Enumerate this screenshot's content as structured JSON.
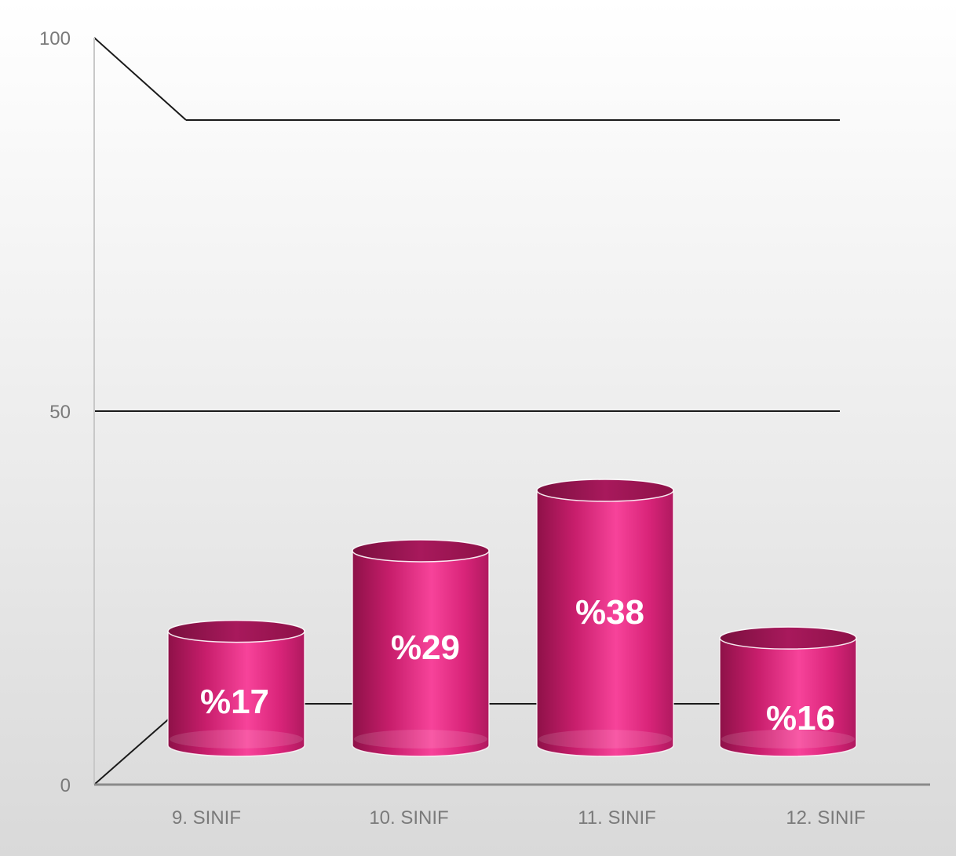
{
  "chart_data": {
    "type": "bar",
    "categories": [
      "9. SINIF",
      "10. SINIF",
      "11. SINIF",
      "12. SINIF"
    ],
    "values": [
      17,
      29,
      38,
      16
    ],
    "data_labels": [
      "%17",
      "%29",
      "%38",
      "%16"
    ],
    "title": "",
    "xlabel": "",
    "ylabel": "",
    "ylim": [
      0,
      100
    ],
    "yticks": [
      0,
      50,
      100
    ],
    "ytick_labels": [
      "0",
      "50",
      "100"
    ],
    "grid": true,
    "style": "3d-cylinder",
    "legend": "none",
    "colors": {
      "bar_main": "#e0267f",
      "bar_highlight": "#f7439a",
      "bar_dark": "#8e1148",
      "bar_top": "#a8195c",
      "axis_text": "#7a7a7a",
      "grid": "#1a1a1a"
    }
  }
}
